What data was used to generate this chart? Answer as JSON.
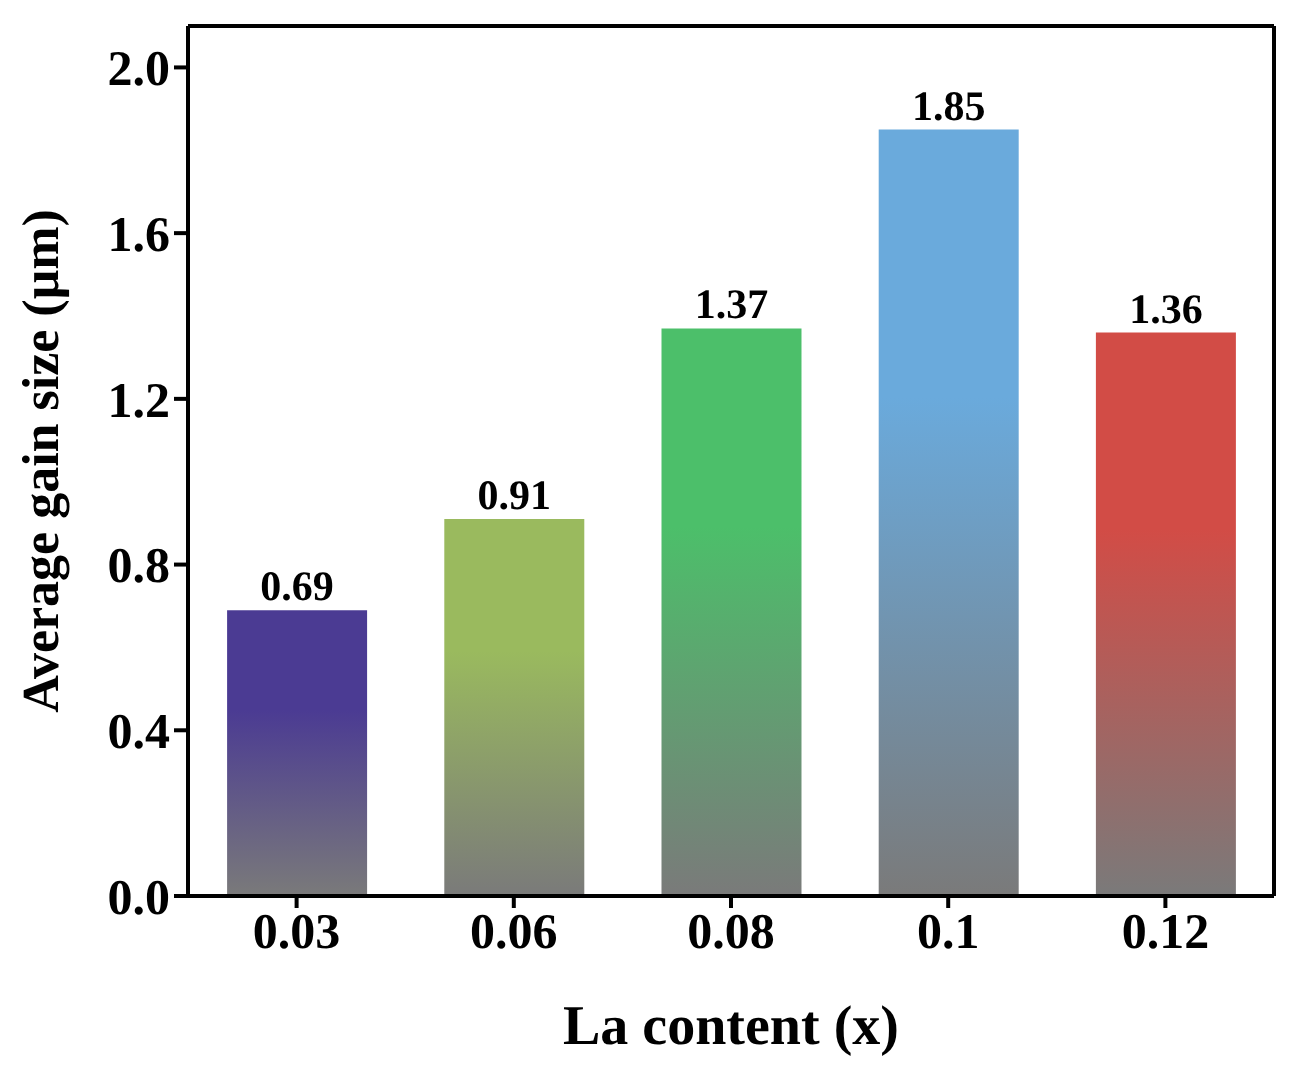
{
  "chart_data": {
    "type": "bar",
    "xlabel": "La content (x)",
    "ylabel": "Average gain size (μm)",
    "categories": [
      "0.03",
      "0.06",
      "0.08",
      "0.1",
      "0.12"
    ],
    "values": [
      0.69,
      0.91,
      1.37,
      1.85,
      1.36
    ],
    "colors": [
      "#4b3b93",
      "#9aba5e",
      "#4cbf6a",
      "#6aaadc",
      "#d24c46"
    ],
    "ylim": [
      0,
      2.1
    ],
    "yticks": [
      {
        "value": 0,
        "label": "0.0"
      },
      0.4,
      0.8,
      1.2,
      1.6,
      {
        "value": 2,
        "label": "2.0"
      }
    ],
    "data_labels": true,
    "grid": false,
    "legend": false
  }
}
